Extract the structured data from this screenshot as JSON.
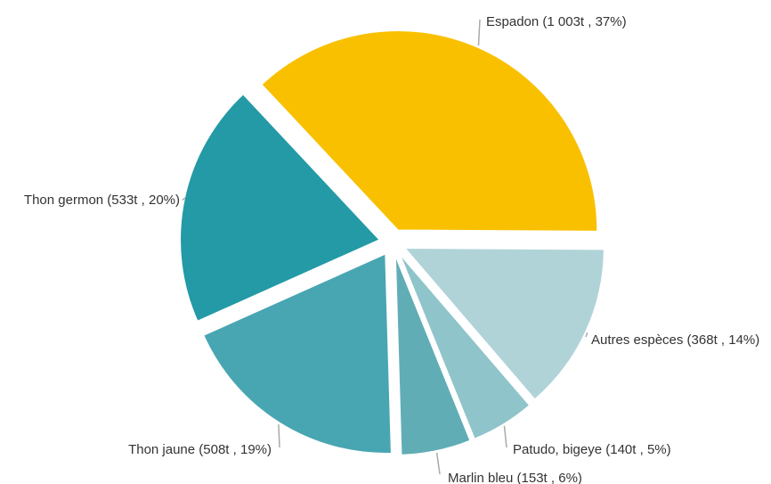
{
  "chart_data": {
    "type": "pie",
    "title": "",
    "series": [
      {
        "values": [
          1003,
          368,
          140,
          153,
          508,
          533
        ]
      }
    ],
    "slices": [
      {
        "name": "Espadon",
        "value": 1003,
        "percent": 37,
        "label": "Espadon (1 003t , 37%)",
        "color": "#f9c000"
      },
      {
        "name": "Autres espèces",
        "value": 368,
        "percent": 14,
        "label": "Autres espèces (368t , 14%)",
        "color": "#b0d3d8"
      },
      {
        "name": "Patudo, bigeye",
        "value": 140,
        "percent": 5,
        "label": "Patudo, bigeye (140t , 5%)",
        "color": "#8fc4ca"
      },
      {
        "name": "Marlin bleu",
        "value": 153,
        "percent": 6,
        "label": "Marlin bleu (153t , 6%)",
        "color": "#61adb5"
      },
      {
        "name": "Thon jaune",
        "value": 508,
        "percent": 19,
        "label": "Thon jaune (508t , 19%)",
        "color": "#48a6b2"
      },
      {
        "name": "Thon germon",
        "value": 533,
        "percent": 20,
        "label": "Thon germon (533t , 20%)",
        "color": "#239aa6"
      }
    ],
    "legend": "none"
  }
}
